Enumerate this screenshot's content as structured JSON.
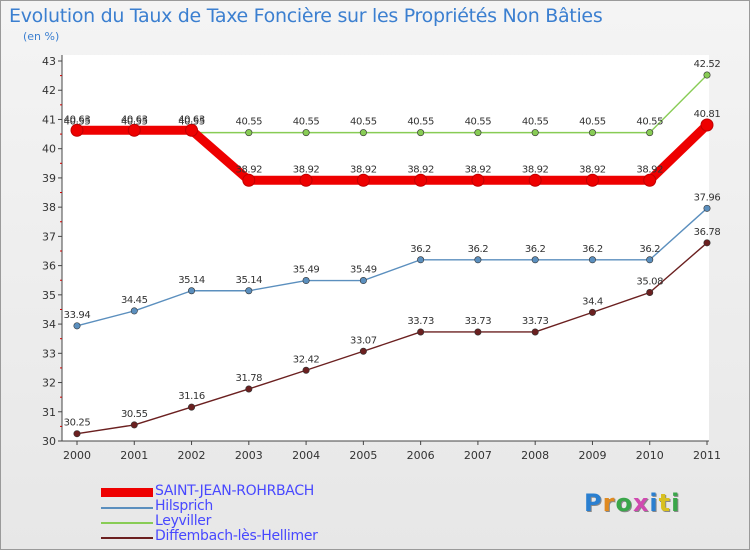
{
  "title": "Evolution du Taux de Taxe Foncière sur les Propriétés Non Bâties",
  "unit": "(en %)",
  "brand": "Proxiti",
  "chart_data": {
    "type": "line",
    "title": "Evolution du Taux de Taxe Foncière sur les Propriétés Non Bâties",
    "ylabel": "(en %)",
    "x": [
      "2000",
      "2001",
      "2002",
      "2003",
      "2004",
      "2005",
      "2006",
      "2007",
      "2008",
      "2009",
      "2010",
      "2011"
    ],
    "ylim": [
      30,
      43
    ],
    "yticks": [
      30,
      31,
      32,
      33,
      34,
      35,
      36,
      37,
      38,
      39,
      40,
      41,
      42,
      43
    ],
    "grid": false,
    "legend_position": "bottom-left",
    "series": [
      {
        "name": "SAINT-JEAN-ROHRBACH",
        "color": "#ee0000",
        "values": [
          40.63,
          40.63,
          40.63,
          38.92,
          38.92,
          38.92,
          38.92,
          38.92,
          38.92,
          38.92,
          38.92,
          40.81
        ],
        "labels": [
          "40.63",
          "40.63",
          "40.63",
          "38.92",
          "38.92",
          "38.92",
          "38.92",
          "38.92",
          "38.92",
          "38.92",
          "38.92",
          "40.81"
        ]
      },
      {
        "name": "Hilsprich",
        "color": "#5b8fbe",
        "values": [
          33.94,
          34.45,
          35.14,
          35.14,
          35.49,
          35.49,
          36.2,
          36.2,
          36.2,
          36.2,
          36.2,
          37.96
        ],
        "labels": [
          "33.94",
          "34.45",
          "35.14",
          "35.14",
          "35.49",
          "35.49",
          "36.2",
          "36.2",
          "36.2",
          "36.2",
          "36.2",
          "37.96"
        ]
      },
      {
        "name": "Leyviller",
        "color": "#88cc55",
        "values": [
          40.55,
          40.55,
          40.55,
          40.55,
          40.55,
          40.55,
          40.55,
          40.55,
          40.55,
          40.55,
          40.55,
          42.52
        ],
        "labels": [
          "40.55",
          "40.55",
          "40.55",
          "40.55",
          "40.55",
          "40.55",
          "40.55",
          "40.55",
          "40.55",
          "40.55",
          "40.55",
          "42.52"
        ]
      },
      {
        "name": "Diffembach-lès-Hellimer",
        "color": "#6b2020",
        "values": [
          30.25,
          30.55,
          31.16,
          31.78,
          32.42,
          33.07,
          33.73,
          33.73,
          33.73,
          34.4,
          35.08,
          36.78
        ],
        "labels": [
          "30.25",
          "30.55",
          "31.16",
          "31.78",
          "32.42",
          "33.07",
          "33.73",
          "33.73",
          "33.73",
          "34.4",
          "35.08",
          "36.78"
        ]
      }
    ]
  }
}
